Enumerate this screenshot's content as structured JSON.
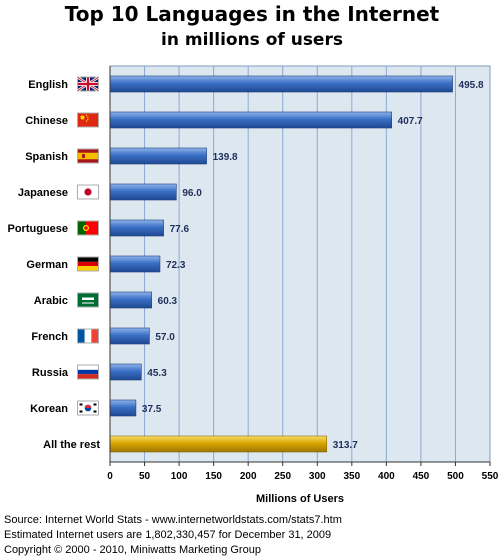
{
  "chart_data": {
    "type": "bar",
    "orientation": "horizontal",
    "title": "Top 10 Languages in the Internet",
    "subtitle": "in millions of users",
    "xlabel": "Millions of Users",
    "ylabel": "",
    "xlim": [
      0,
      550
    ],
    "xticks": [
      "0",
      "50",
      "100",
      "150",
      "200",
      "250",
      "300",
      "350",
      "400",
      "450",
      "500",
      "550"
    ],
    "grid": true,
    "categories": [
      "English",
      "Chinese",
      "Spanish",
      "Japanese",
      "Portuguese",
      "German",
      "Arabic",
      "French",
      "Russia",
      "Korean",
      "All the rest"
    ],
    "values": [
      495.8,
      407.7,
      139.8,
      96.0,
      77.6,
      72.3,
      60.3,
      57.0,
      45.3,
      37.5,
      313.7
    ],
    "value_labels": [
      "495.8",
      "407.7",
      "139.8",
      "96.0",
      "77.6",
      "72.3",
      "60.3",
      "57.0",
      "45.3",
      "37.5",
      "313.7"
    ],
    "flags": [
      "uk-flag-icon",
      "china-flag-icon",
      "spain-flag-icon",
      "japan-flag-icon",
      "portugal-flag-icon",
      "germany-flag-icon",
      "saudi-flag-icon",
      "france-flag-icon",
      "russia-flag-icon",
      "korea-flag-icon",
      ""
    ],
    "colors": {
      "bar": "#3a6fc4",
      "bar_highlight": "#d9a600",
      "plot_background": "#dde7f0",
      "grid": "#8aaad0"
    }
  },
  "footer": {
    "source": "Source: Internet World Stats - www.internetworldstats.com/stats7.htm",
    "estimate": "Estimated Internet users are 1,802,330,457 for December 31, 2009",
    "copyright": "Copyright © 2000 - 2010, Miniwatts Marketing Group"
  }
}
